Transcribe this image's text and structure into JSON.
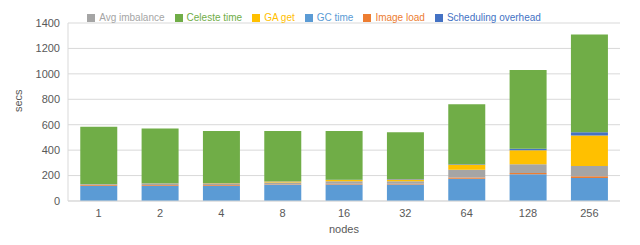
{
  "chart_data": {
    "type": "bar",
    "stacked": true,
    "grid": true,
    "legend": "top",
    "x_label": "nodes",
    "y_label": "secs",
    "categories": [
      "1",
      "2",
      "4",
      "8",
      "16",
      "32",
      "64",
      "128",
      "256"
    ],
    "ylim": [
      0,
      1400
    ],
    "yticks": [
      0,
      200,
      400,
      600,
      800,
      1000,
      1200,
      1400
    ],
    "series": [
      {
        "name": "GC time",
        "color": "#5b9bd5",
        "values": [
          120,
          120,
          120,
          125,
          130,
          130,
          175,
          210,
          180
        ]
      },
      {
        "name": "Image load",
        "color": "#ed7d31",
        "values": [
          5,
          5,
          5,
          5,
          5,
          5,
          10,
          10,
          15
        ]
      },
      {
        "name": "Avg imbalance",
        "color": "#a5a5a5",
        "values": [
          5,
          10,
          10,
          15,
          20,
          20,
          60,
          70,
          80
        ]
      },
      {
        "name": "GA get",
        "color": "#ffc000",
        "values": [
          2,
          3,
          5,
          8,
          10,
          15,
          40,
          110,
          240
        ]
      },
      {
        "name": "Scheduling overhead",
        "color": "#4472c4",
        "values": [
          2,
          2,
          2,
          2,
          3,
          3,
          5,
          10,
          25
        ]
      },
      {
        "name": "Celeste time",
        "color": "#70ad47",
        "values": [
          450,
          430,
          408,
          395,
          382,
          367,
          470,
          620,
          770
        ]
      }
    ]
  }
}
